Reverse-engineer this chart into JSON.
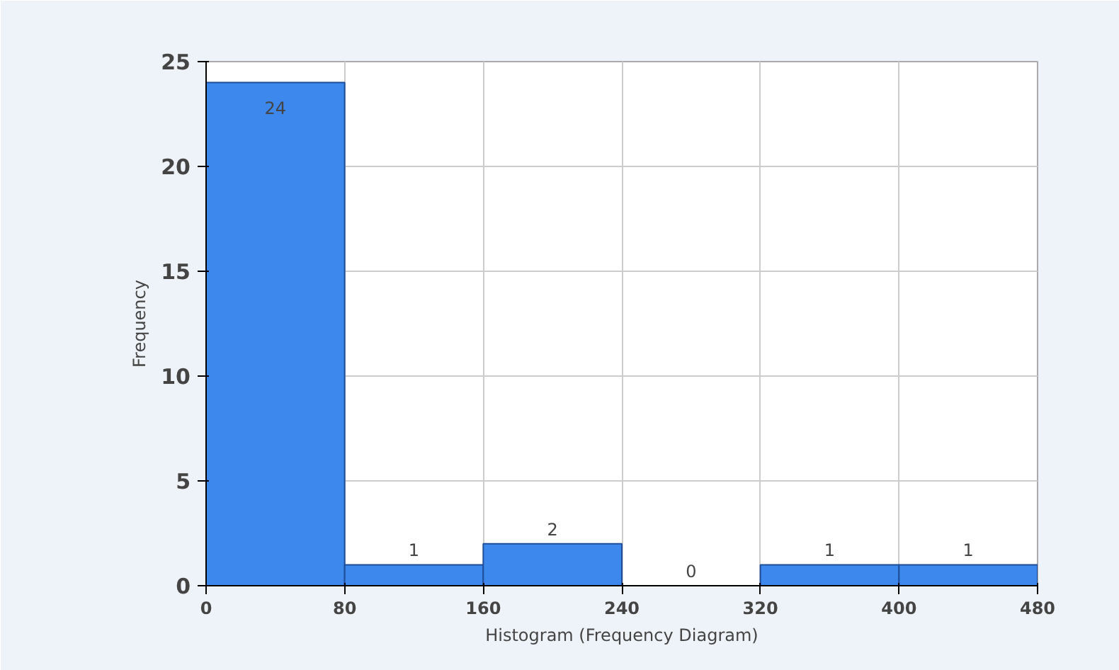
{
  "chart_data": {
    "type": "histogram",
    "xlabel": "Histogram (Frequency Diagram)",
    "ylabel": "Frequency",
    "bins": [
      0,
      80,
      160,
      240,
      320,
      400,
      480
    ],
    "values": [
      24,
      1,
      2,
      0,
      1,
      1
    ],
    "color": "#3d88ec",
    "xlim": [
      0,
      480
    ],
    "ylim": [
      0,
      25
    ],
    "xticks": [
      0,
      80,
      160,
      240,
      320,
      400,
      480
    ],
    "yticks": [
      0,
      5,
      10,
      15,
      20,
      25
    ],
    "grid": true,
    "data_labels": true
  }
}
